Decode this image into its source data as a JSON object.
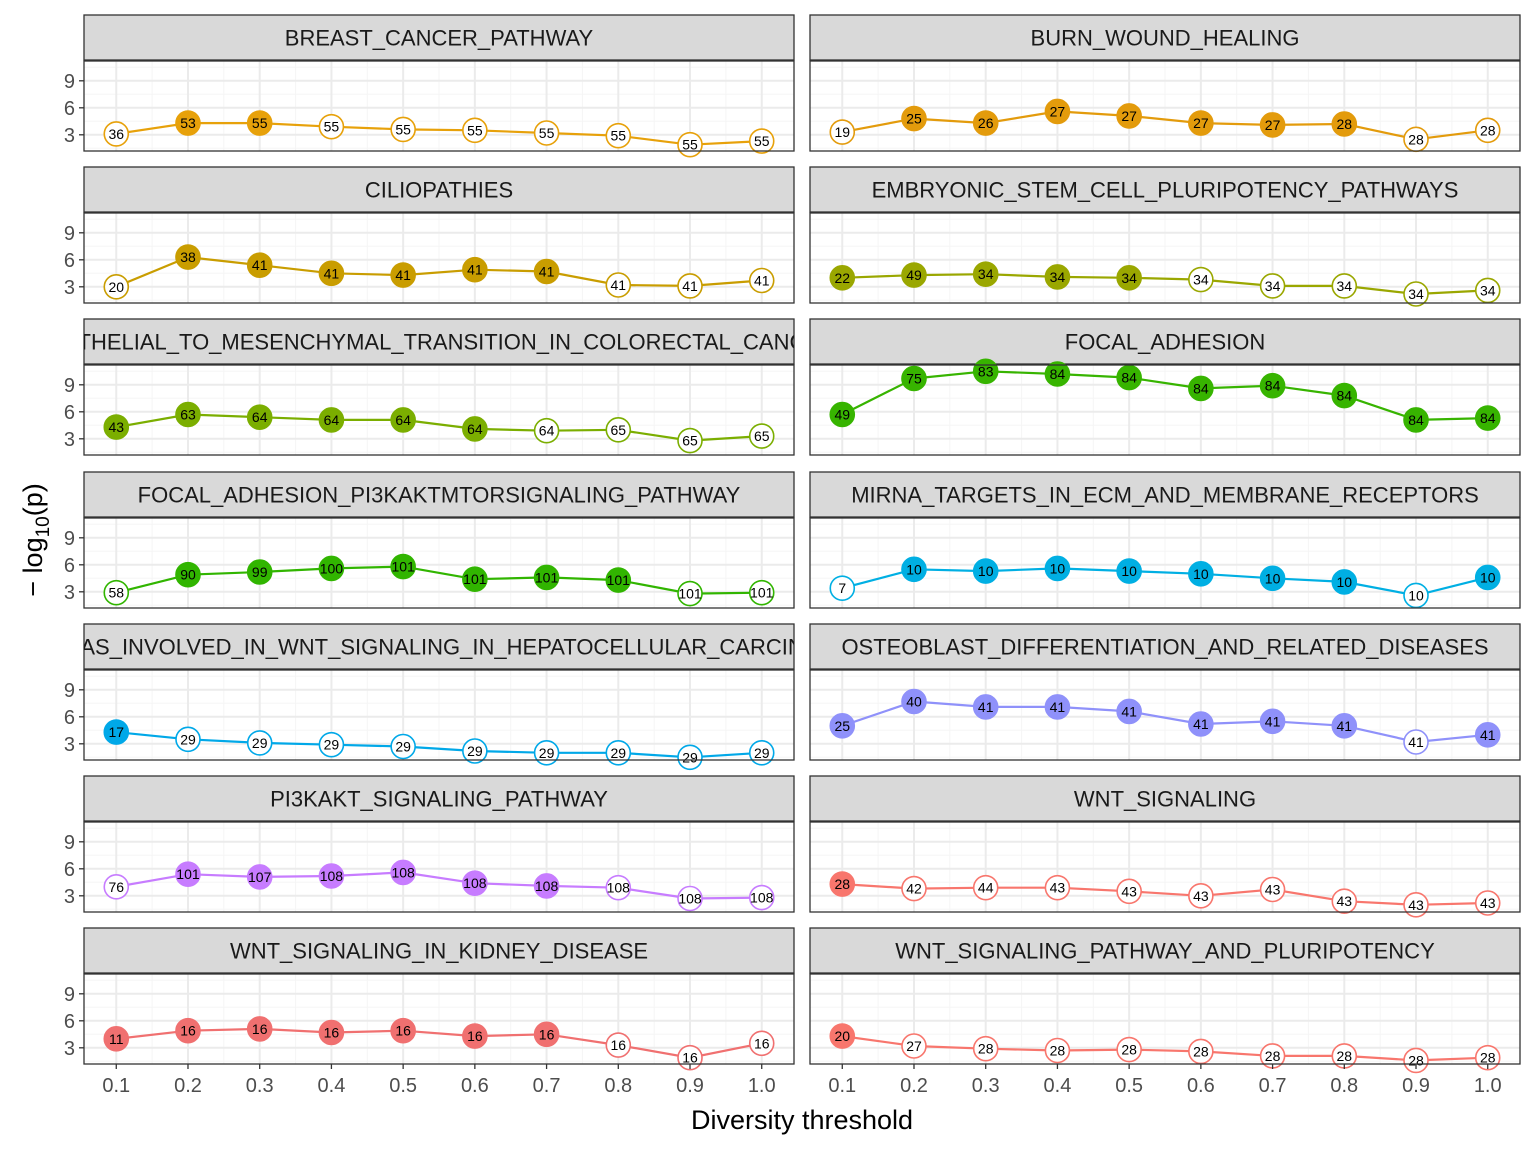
{
  "chart_data": {
    "type": "line",
    "xlabel": "Diversity threshold",
    "ylabel": "− log10(p)",
    "ylabel_main": "− log",
    "ylabel_sub": "10",
    "ylabel_tail": "(p)",
    "x": [
      0.1,
      0.2,
      0.3,
      0.4,
      0.5,
      0.6,
      0.7,
      0.8,
      0.9,
      1.0
    ],
    "x_tick_labels": [
      "0.1",
      "0.2",
      "0.3",
      "0.4",
      "0.5",
      "0.6",
      "0.7",
      "0.8",
      "0.9",
      "1.0"
    ],
    "y_ticks": [
      3,
      6,
      9
    ],
    "y_tick_labels": [
      "3",
      "6",
      "9"
    ],
    "ylim": [
      1.2,
      11.2
    ],
    "grid": true,
    "facets": [
      {
        "title": "BREAST_CANCER_PATHWAY",
        "color": "#E7A10A",
        "y": [
          3.1,
          4.3,
          4.3,
          3.9,
          3.6,
          3.5,
          3.2,
          2.9,
          1.9,
          2.3
        ],
        "labels": [
          "36",
          "53",
          "55",
          "55",
          "55",
          "55",
          "55",
          "55",
          "55",
          "55"
        ],
        "filled": [
          false,
          true,
          true,
          false,
          false,
          false,
          false,
          false,
          false,
          false
        ]
      },
      {
        "title": "BURN_WOUND_HEALING",
        "color": "#E39B0C",
        "y": [
          3.3,
          4.8,
          4.3,
          5.6,
          5.1,
          4.3,
          4.1,
          4.2,
          2.5,
          3.5
        ],
        "labels": [
          "19",
          "25",
          "26",
          "27",
          "27",
          "27",
          "27",
          "28",
          "28",
          "28"
        ],
        "filled": [
          false,
          true,
          true,
          true,
          true,
          true,
          true,
          true,
          false,
          false
        ]
      },
      {
        "title": "CILIOPATHIES",
        "color": "#C99D00",
        "y": [
          3.0,
          6.3,
          5.4,
          4.5,
          4.3,
          4.9,
          4.7,
          3.2,
          3.1,
          3.7
        ],
        "labels": [
          "20",
          "38",
          "41",
          "41",
          "41",
          "41",
          "41",
          "41",
          "41",
          "41"
        ],
        "filled": [
          false,
          true,
          true,
          true,
          true,
          true,
          true,
          false,
          false,
          false
        ]
      },
      {
        "title": "EMBRYONIC_STEM_CELL_PLURIPOTENCY_PATHWAYS",
        "color": "#9AA700",
        "y": [
          4.0,
          4.3,
          4.4,
          4.1,
          4.0,
          3.8,
          3.1,
          3.1,
          2.2,
          2.6
        ],
        "labels": [
          "22",
          "49",
          "34",
          "34",
          "34",
          "34",
          "34",
          "34",
          "34",
          "34"
        ],
        "filled": [
          true,
          true,
          true,
          true,
          true,
          false,
          false,
          false,
          false,
          false
        ]
      },
      {
        "title": "EPITHELIAL_TO_MESENCHYMAL_TRANSITION_IN_COLORECTAL_CANCER",
        "color": "#7BAE00",
        "y": [
          4.3,
          5.7,
          5.4,
          5.1,
          5.1,
          4.1,
          3.9,
          4.0,
          2.8,
          3.3
        ],
        "labels": [
          "43",
          "63",
          "64",
          "64",
          "64",
          "64",
          "64",
          "65",
          "65",
          "65"
        ],
        "filled": [
          true,
          true,
          true,
          true,
          true,
          true,
          false,
          false,
          false,
          false
        ]
      },
      {
        "title": "FOCAL_ADHESION",
        "color": "#37B400",
        "y": [
          5.7,
          9.7,
          10.5,
          10.2,
          9.8,
          8.6,
          8.9,
          7.8,
          5.1,
          5.3
        ],
        "labels": [
          "49",
          "75",
          "83",
          "84",
          "84",
          "84",
          "84",
          "84",
          "84",
          "84"
        ],
        "filled": [
          true,
          true,
          true,
          true,
          true,
          true,
          true,
          true,
          true,
          true
        ]
      },
      {
        "title": "FOCAL_ADHESION_PI3KAKTMTORSIGNALING_PATHWAY",
        "color": "#31B500",
        "y": [
          2.9,
          4.9,
          5.2,
          5.6,
          5.8,
          4.4,
          4.6,
          4.3,
          2.8,
          2.9
        ],
        "labels": [
          "58",
          "90",
          "99",
          "100",
          "101",
          "101",
          "101",
          "101",
          "101",
          "101"
        ],
        "filled": [
          false,
          true,
          true,
          true,
          true,
          true,
          true,
          true,
          false,
          false
        ]
      },
      {
        "title": "MIRNA_TARGETS_IN_ECM_AND_MEMBRANE_RECEPTORS",
        "color": "#00AFE3",
        "y": [
          3.4,
          5.5,
          5.3,
          5.6,
          5.3,
          5.0,
          4.5,
          4.1,
          2.6,
          4.6
        ],
        "labels": [
          "7",
          "10",
          "10",
          "10",
          "10",
          "10",
          "10",
          "10",
          "10",
          "10"
        ],
        "filled": [
          false,
          true,
          true,
          true,
          true,
          true,
          true,
          true,
          false,
          true
        ]
      },
      {
        "title": "MIRNAS_INVOLVED_IN_WNT_SIGNALING_IN_HEPATOCELLULAR_CARCINOMA",
        "color": "#00A8E8",
        "y": [
          4.3,
          3.5,
          3.1,
          2.9,
          2.7,
          2.2,
          2.0,
          2.0,
          1.5,
          2.0
        ],
        "labels": [
          "17",
          "29",
          "29",
          "29",
          "29",
          "29",
          "29",
          "29",
          "29",
          "29"
        ],
        "filled": [
          true,
          false,
          false,
          false,
          false,
          false,
          false,
          false,
          false,
          false
        ]
      },
      {
        "title": "OSTEOBLAST_DIFFERENTIATION_AND_RELATED_DISEASES",
        "color": "#8F91FA",
        "y": [
          5.0,
          7.7,
          7.1,
          7.1,
          6.6,
          5.2,
          5.5,
          5.0,
          3.2,
          4.0
        ],
        "labels": [
          "25",
          "40",
          "41",
          "41",
          "41",
          "41",
          "41",
          "41",
          "41",
          "41"
        ],
        "filled": [
          true,
          true,
          true,
          true,
          true,
          true,
          true,
          true,
          false,
          true
        ]
      },
      {
        "title": "PI3KAKT_SIGNALING_PATHWAY",
        "color": "#C77CFF",
        "y": [
          4.0,
          5.4,
          5.1,
          5.2,
          5.6,
          4.4,
          4.1,
          3.9,
          2.7,
          2.8
        ],
        "labels": [
          "76",
          "101",
          "107",
          "108",
          "108",
          "108",
          "108",
          "108",
          "108",
          "108"
        ],
        "filled": [
          false,
          true,
          true,
          true,
          true,
          true,
          true,
          false,
          false,
          false
        ]
      },
      {
        "title": "WNT_SIGNALING",
        "color": "#F8766D",
        "y": [
          4.3,
          3.8,
          3.9,
          3.9,
          3.5,
          3.0,
          3.7,
          2.4,
          2.0,
          2.2
        ],
        "labels": [
          "28",
          "42",
          "44",
          "43",
          "43",
          "43",
          "43",
          "43",
          "43",
          "43"
        ],
        "filled": [
          true,
          false,
          false,
          false,
          false,
          false,
          false,
          false,
          false,
          false
        ]
      },
      {
        "title": "WNT_SIGNALING_IN_KIDNEY_DISEASE",
        "color": "#F07070",
        "y": [
          4.0,
          4.9,
          5.1,
          4.7,
          4.9,
          4.3,
          4.5,
          3.3,
          1.9,
          3.5
        ],
        "labels": [
          "11",
          "16",
          "16",
          "16",
          "16",
          "16",
          "16",
          "16",
          "16",
          "16"
        ],
        "filled": [
          true,
          true,
          true,
          true,
          true,
          true,
          true,
          false,
          false,
          false
        ]
      },
      {
        "title": "WNT_SIGNALING_PATHWAY_AND_PLURIPOTENCY",
        "color": "#F8766D",
        "y": [
          4.3,
          3.2,
          2.9,
          2.7,
          2.8,
          2.6,
          2.1,
          2.1,
          1.6,
          1.9
        ],
        "labels": [
          "20",
          "27",
          "28",
          "28",
          "28",
          "28",
          "28",
          "28",
          "28",
          "28"
        ],
        "filled": [
          true,
          false,
          false,
          false,
          false,
          false,
          false,
          false,
          false,
          false
        ]
      }
    ]
  }
}
